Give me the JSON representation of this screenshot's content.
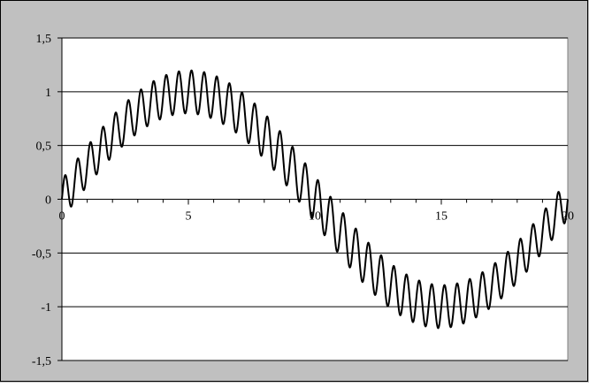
{
  "chart_data": {
    "type": "line",
    "title": "",
    "xlabel": "",
    "ylabel": "",
    "xlim": [
      0,
      20
    ],
    "ylim": [
      -1.5,
      1.5
    ],
    "grid": true,
    "x_ticks": [
      0,
      5,
      10,
      15,
      20
    ],
    "x_tick_labels": [
      "0",
      "5",
      "10",
      "15",
      "20"
    ],
    "y_ticks": [
      1.5,
      1,
      0.5,
      0,
      -0.5,
      -1,
      -1.5
    ],
    "y_tick_labels": [
      "1,5",
      "1",
      "0,5",
      "0",
      "-0,5",
      "-1",
      "-1,5"
    ],
    "plot_background": "#ffffff",
    "chart_area_background": "#c0c0c0",
    "line_color": "#000000",
    "series": [
      {
        "x": [
          0,
          0.5,
          1,
          1.5,
          2,
          2.5,
          3,
          3.5,
          4,
          4.5,
          5,
          5.5,
          6,
          6.5,
          7,
          7.5,
          8,
          8.5,
          9,
          9.5,
          10,
          10.5,
          11,
          11.5,
          12,
          12.5,
          13,
          13.5,
          14,
          14.5,
          15,
          15.5,
          16,
          16.5,
          17,
          17.5,
          18,
          18.5,
          19,
          19.5,
          20
        ],
        "envelope_center": [
          0,
          0.156,
          0.309,
          0.454,
          0.588,
          0.707,
          0.809,
          0.891,
          0.951,
          0.988,
          1,
          0.988,
          0.951,
          0.891,
          0.809,
          0.707,
          0.588,
          0.454,
          0.309,
          0.156,
          0,
          -0.156,
          -0.309,
          -0.454,
          -0.588,
          -0.707,
          -0.809,
          -0.891,
          -0.951,
          -0.988,
          -1,
          -0.988,
          -0.951,
          -0.891,
          -0.809,
          -0.707,
          -0.588,
          -0.454,
          -0.309,
          -0.156,
          0
        ],
        "ripple_amplitude": 0.2,
        "ripple_cycles": 40
      }
    ]
  }
}
